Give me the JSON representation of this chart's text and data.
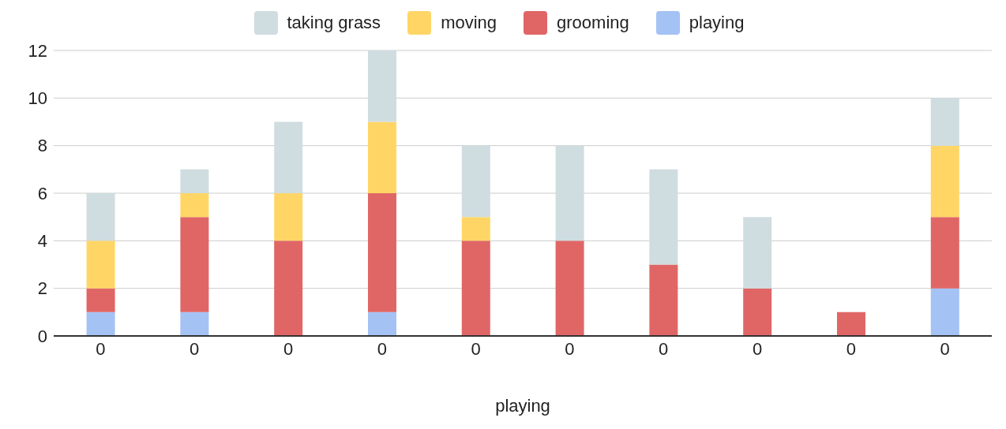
{
  "chart_data": {
    "type": "bar",
    "stacked": true,
    "xlabel": "playing",
    "categories": [
      "0",
      "0",
      "0",
      "0",
      "0",
      "0",
      "0",
      "0",
      "0",
      "0"
    ],
    "series": [
      {
        "name": "playing",
        "color": "#a4c2f4",
        "values": [
          1,
          1,
          0,
          1,
          0,
          0,
          0,
          0,
          0,
          2
        ]
      },
      {
        "name": "grooming",
        "color": "#e06666",
        "values": [
          1,
          4,
          4,
          5,
          4,
          4,
          3,
          2,
          1,
          3
        ]
      },
      {
        "name": "moving",
        "color": "#ffd666",
        "values": [
          2,
          1,
          2,
          3,
          1,
          0,
          0,
          0,
          0,
          3
        ]
      },
      {
        "name": "taking grass",
        "color": "#cfdde0",
        "values": [
          2,
          1,
          3,
          3,
          3,
          4,
          4,
          3,
          0,
          2
        ]
      }
    ],
    "ylim": [
      0,
      12
    ],
    "yticks": [
      0,
      2,
      4,
      6,
      8,
      10,
      12
    ],
    "grid": "y",
    "legend": "top"
  }
}
